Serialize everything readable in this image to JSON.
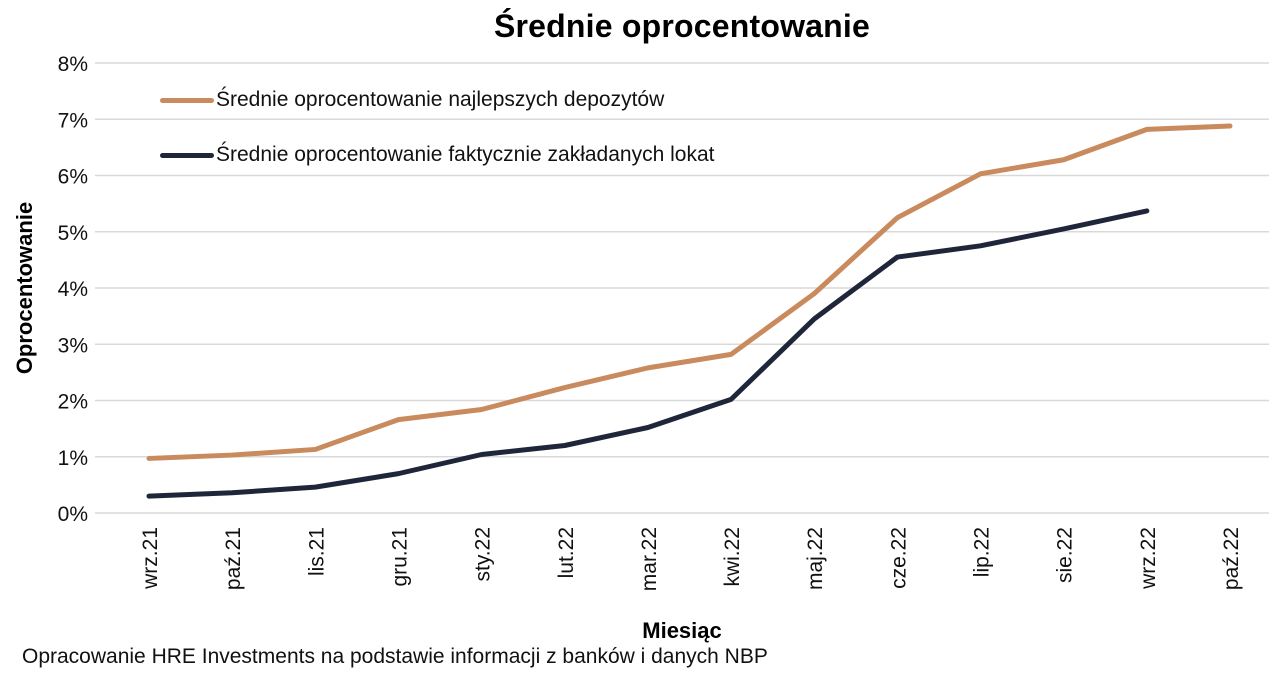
{
  "title": "Średnie oprocentowanie",
  "axes": {
    "y_title": "Oprocentowanie",
    "x_title": "Miesiąc",
    "y_ticks": [
      "8%",
      "7%",
      "6%",
      "5%",
      "4%",
      "3%",
      "2%",
      "1%",
      "0%"
    ]
  },
  "caption": "Opracowanie HRE Investments na podstawie informacji z banków i danych NBP",
  "colors": {
    "series1": "#C98A5E",
    "series2": "#20263A",
    "gridline": "#D9D9D9",
    "text": "#111111"
  },
  "chart_data": {
    "type": "line",
    "title": "Średnie oprocentowanie",
    "xlabel": "Miesiąc",
    "ylabel": "Oprocentowanie",
    "ylim": [
      0,
      8
    ],
    "grid": true,
    "legend_position": "top-left-inside",
    "categories": [
      "wrz.21",
      "paź.21",
      "lis.21",
      "gru.21",
      "sty.22",
      "lut.22",
      "mar.22",
      "kwi.22",
      "maj.22",
      "cze.22",
      "lip.22",
      "sie.22",
      "wrz.22",
      "paź.22"
    ],
    "series": [
      {
        "name": "Średnie oprocentowanie najlepszych depozytów",
        "color": "#C98A5E",
        "values": [
          0.97,
          1.03,
          1.13,
          1.66,
          1.84,
          2.23,
          2.58,
          2.82,
          3.9,
          5.25,
          6.03,
          6.28,
          6.82,
          6.88
        ]
      },
      {
        "name": "Średnie oprocentowanie faktycznie zakładanych lokat",
        "color": "#20263A",
        "values": [
          0.3,
          0.36,
          0.46,
          0.7,
          1.04,
          1.2,
          1.52,
          2.02,
          3.45,
          4.55,
          4.75,
          5.05,
          5.37,
          null
        ]
      }
    ]
  }
}
